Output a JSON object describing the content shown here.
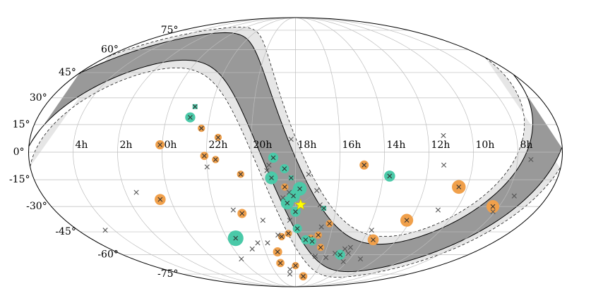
{
  "chart_data": {
    "type": "scatter",
    "projection": "mollweide",
    "ra_direction": "increasing-leftward",
    "x_ticks": [
      "4h",
      "2h",
      "0h",
      "22h",
      "20h",
      "18h",
      "16h",
      "14h",
      "12h",
      "10h",
      "8h"
    ],
    "y_ticks": [
      "75°",
      "60°",
      "45°",
      "30°",
      "15°",
      "0°",
      "-15°",
      "-30°",
      "-45°",
      "-60°",
      "-75°"
    ],
    "grid": true,
    "bands": [
      {
        "name": "",
        "color": "#e6e6e6",
        "stroke": "#000000"
      },
      {
        "name": "",
        "color": "#999999",
        "stroke": "#000000"
      }
    ],
    "colors": {
      "orange": "#f0a04b",
      "teal": "#4ac9a8",
      "cross": "#333333",
      "star": "#ffff00"
    },
    "series": [
      {
        "marker": "orange-circle-with-cross",
        "points": [
          {
            "ra": 0.1,
            "dec": 4,
            "s": 1
          },
          {
            "ra": 22.3,
            "dec": 13,
            "s": 0.8
          },
          {
            "ra": 21.5,
            "dec": 8,
            "s": 0.8
          },
          {
            "ra": 22.1,
            "dec": -2,
            "s": 0.9
          },
          {
            "ra": 21.6,
            "dec": -4,
            "s": 0.8
          },
          {
            "ra": 0.5,
            "dec": -26,
            "s": 1.2
          },
          {
            "ra": 20.5,
            "dec": -12,
            "s": 0.8
          },
          {
            "ra": 20.7,
            "dec": -34,
            "s": 1
          },
          {
            "ra": 18.5,
            "dec": -19,
            "s": 0.8
          },
          {
            "ra": 14.9,
            "dec": -7,
            "s": 1
          },
          {
            "ra": 10.4,
            "dec": -19,
            "s": 1.5
          },
          {
            "ra": 8.3,
            "dec": -30,
            "s": 1.4
          },
          {
            "ra": 12.2,
            "dec": -38,
            "s": 1.4
          },
          {
            "ra": 13.4,
            "dec": -50,
            "s": 1.2
          },
          {
            "ra": 16.2,
            "dec": -40,
            "s": 0.8
          },
          {
            "ra": 16.7,
            "dec": -47,
            "s": 0.8
          },
          {
            "ra": 16.4,
            "dec": -55,
            "s": 0.8
          },
          {
            "ra": 17.1,
            "dec": -49,
            "s": 0.8
          },
          {
            "ra": 18.4,
            "dec": -46,
            "s": 0.8
          },
          {
            "ra": 18.8,
            "dec": -48,
            "s": 0.8
          },
          {
            "ra": 19.2,
            "dec": -58,
            "s": 1
          },
          {
            "ra": 19.2,
            "dec": -66,
            "s": 0.9
          },
          {
            "ra": 18.0,
            "dec": -68,
            "s": 0.8
          },
          {
            "ra": 17.1,
            "dec": -77,
            "s": 0.9
          }
        ]
      },
      {
        "marker": "teal-circle-with-cross",
        "points": [
          {
            "ra": 22.9,
            "dec": 19,
            "s": 1.1
          },
          {
            "ra": 19.0,
            "dec": -3,
            "s": 1.1
          },
          {
            "ra": 18.5,
            "dec": -9,
            "s": 1
          },
          {
            "ra": 19.1,
            "dec": -14,
            "s": 1.4
          },
          {
            "ra": 17.8,
            "dec": -20,
            "s": 1.5
          },
          {
            "ra": 18.1,
            "dec": -24,
            "s": 1.4
          },
          {
            "ra": 18.4,
            "dec": -28,
            "s": 1.4
          },
          {
            "ra": 18.0,
            "dec": -33,
            "s": 1.1
          },
          {
            "ra": 17.9,
            "dec": -43,
            "s": 1
          },
          {
            "ra": 17.4,
            "dec": -50,
            "s": 1
          },
          {
            "ra": 17.0,
            "dec": -51,
            "s": 0.9
          },
          {
            "ra": 14.9,
            "dec": -60,
            "s": 1.1
          },
          {
            "ra": 13.7,
            "dec": -13,
            "s": 1.2
          },
          {
            "ra": 21.5,
            "dec": -49,
            "s": 1.7
          }
        ]
      },
      {
        "marker": "small-teal-square-with-cross",
        "points": [
          {
            "ra": 22.8,
            "dec": 25
          },
          {
            "ra": 18.2,
            "dec": -14
          },
          {
            "ra": 16.6,
            "dec": -31
          }
        ]
      },
      {
        "marker": "gray-cross",
        "points": [
          {
            "ra": 18.2,
            "dec": 7
          },
          {
            "ra": 11.3,
            "dec": 9
          },
          {
            "ra": 22.0,
            "dec": -8
          },
          {
            "ra": 19.2,
            "dec": -7
          },
          {
            "ra": 19.3,
            "dec": -10
          },
          {
            "ra": 17.4,
            "dec": -12
          },
          {
            "ra": 17.0,
            "dec": -21
          },
          {
            "ra": 11.3,
            "dec": -7
          },
          {
            "ra": 1.5,
            "dec": -22
          },
          {
            "ra": 18.3,
            "dec": -22
          },
          {
            "ra": 18.6,
            "dec": -25
          },
          {
            "ra": 16.8,
            "dec": -29
          },
          {
            "ra": 21.1,
            "dec": -32
          },
          {
            "ra": 19.7,
            "dec": -38
          },
          {
            "ra": 18.3,
            "dec": -38
          },
          {
            "ra": 16.6,
            "dec": -42
          },
          {
            "ra": 10.9,
            "dec": -32
          },
          {
            "ra": 13.8,
            "dec": -44
          },
          {
            "ra": 4.5,
            "dec": -44
          },
          {
            "ra": 19.0,
            "dec": -47
          },
          {
            "ra": 19.7,
            "dec": -52
          },
          {
            "ra": 20.3,
            "dec": -52
          },
          {
            "ra": 20.8,
            "dec": -56
          },
          {
            "ra": 15.3,
            "dec": -59
          },
          {
            "ra": 14.8,
            "dec": -56
          },
          {
            "ra": 14.5,
            "dec": -55
          },
          {
            "ra": 14.4,
            "dec": -59
          },
          {
            "ra": 14.3,
            "dec": -65
          },
          {
            "ra": 16.6,
            "dec": -61
          },
          {
            "ra": 15.8,
            "dec": -62
          },
          {
            "ra": 22.0,
            "dec": -63
          },
          {
            "ra": 18.5,
            "dec": -71
          },
          {
            "ra": 18.6,
            "dec": -75
          },
          {
            "ra": 13.2,
            "dec": -63
          },
          {
            "ra": 7.4,
            "dec": -4
          },
          {
            "ra": 7.6,
            "dec": -24
          },
          {
            "ra": 8.1,
            "dec": -33
          }
        ]
      },
      {
        "marker": "yellow-star",
        "points": [
          {
            "ra": 17.75,
            "dec": -29.0
          }
        ]
      }
    ]
  }
}
